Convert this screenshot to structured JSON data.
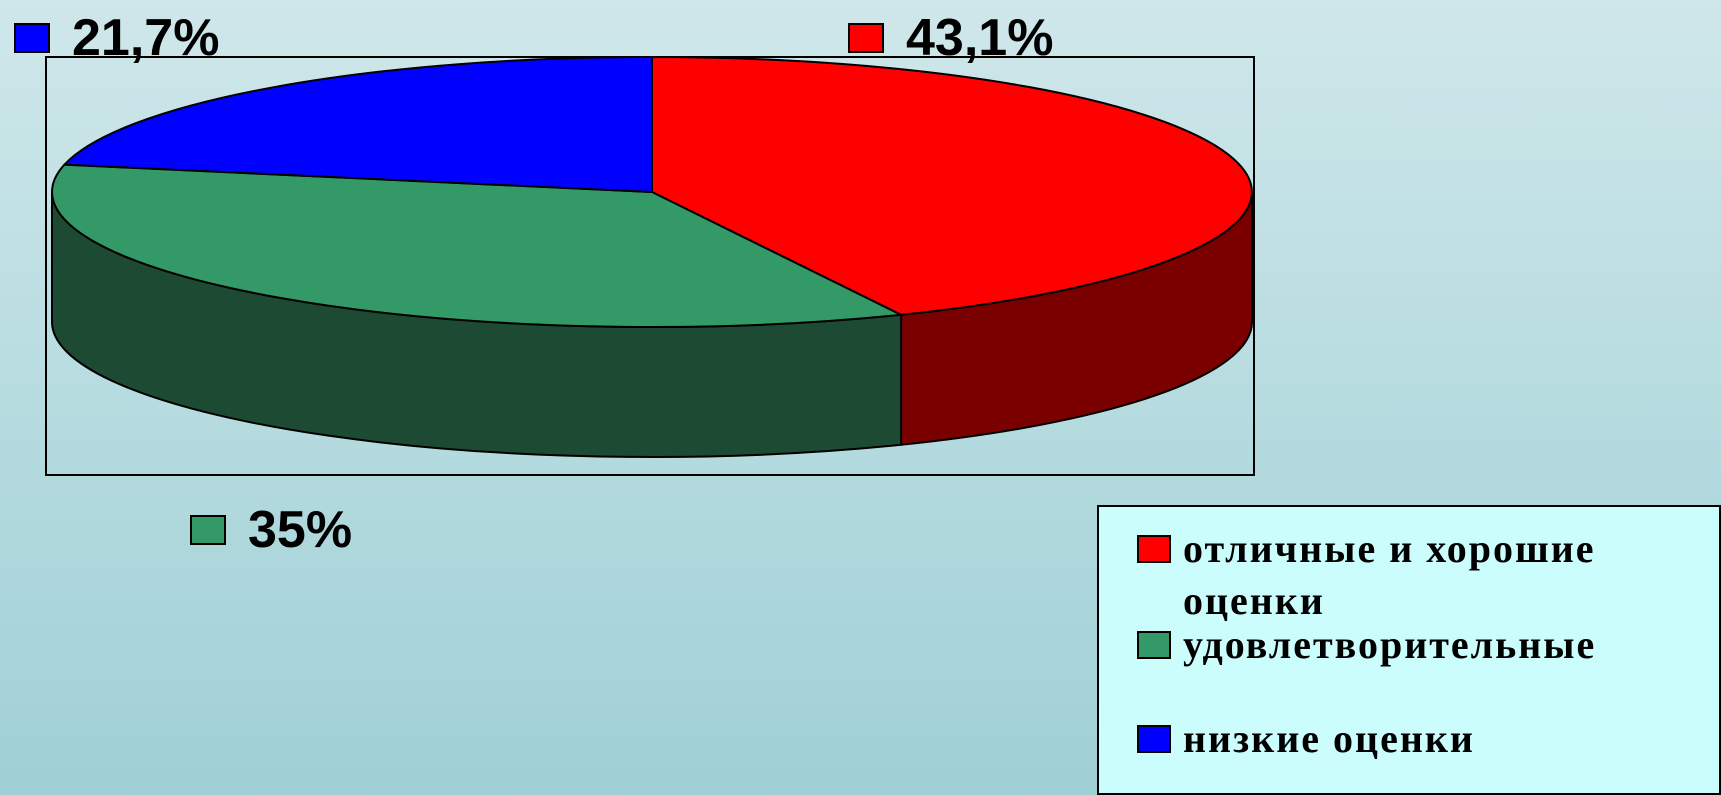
{
  "chart_data": {
    "type": "pie",
    "slices": [
      {
        "label": "отличные и хорошие оценки",
        "value": 43.1,
        "value_label": "43,1%",
        "color": "#ff0000",
        "side_color": "#7a0000"
      },
      {
        "label": "удовлетворительные",
        "value": 35,
        "value_label": "35%",
        "color": "#339966",
        "side_color": "#1c4a33"
      },
      {
        "label": "низкие оценки",
        "value": 21.7,
        "value_label": "21,7%",
        "color": "#0000ff",
        "side_color": "#000080"
      }
    ],
    "legend_placement": "bottom-right",
    "style": "3d"
  },
  "colors": {
    "background_top": "#cfe7ea",
    "background_bottom": "#9fd0d6",
    "legend_background": "#ccfdfd"
  }
}
